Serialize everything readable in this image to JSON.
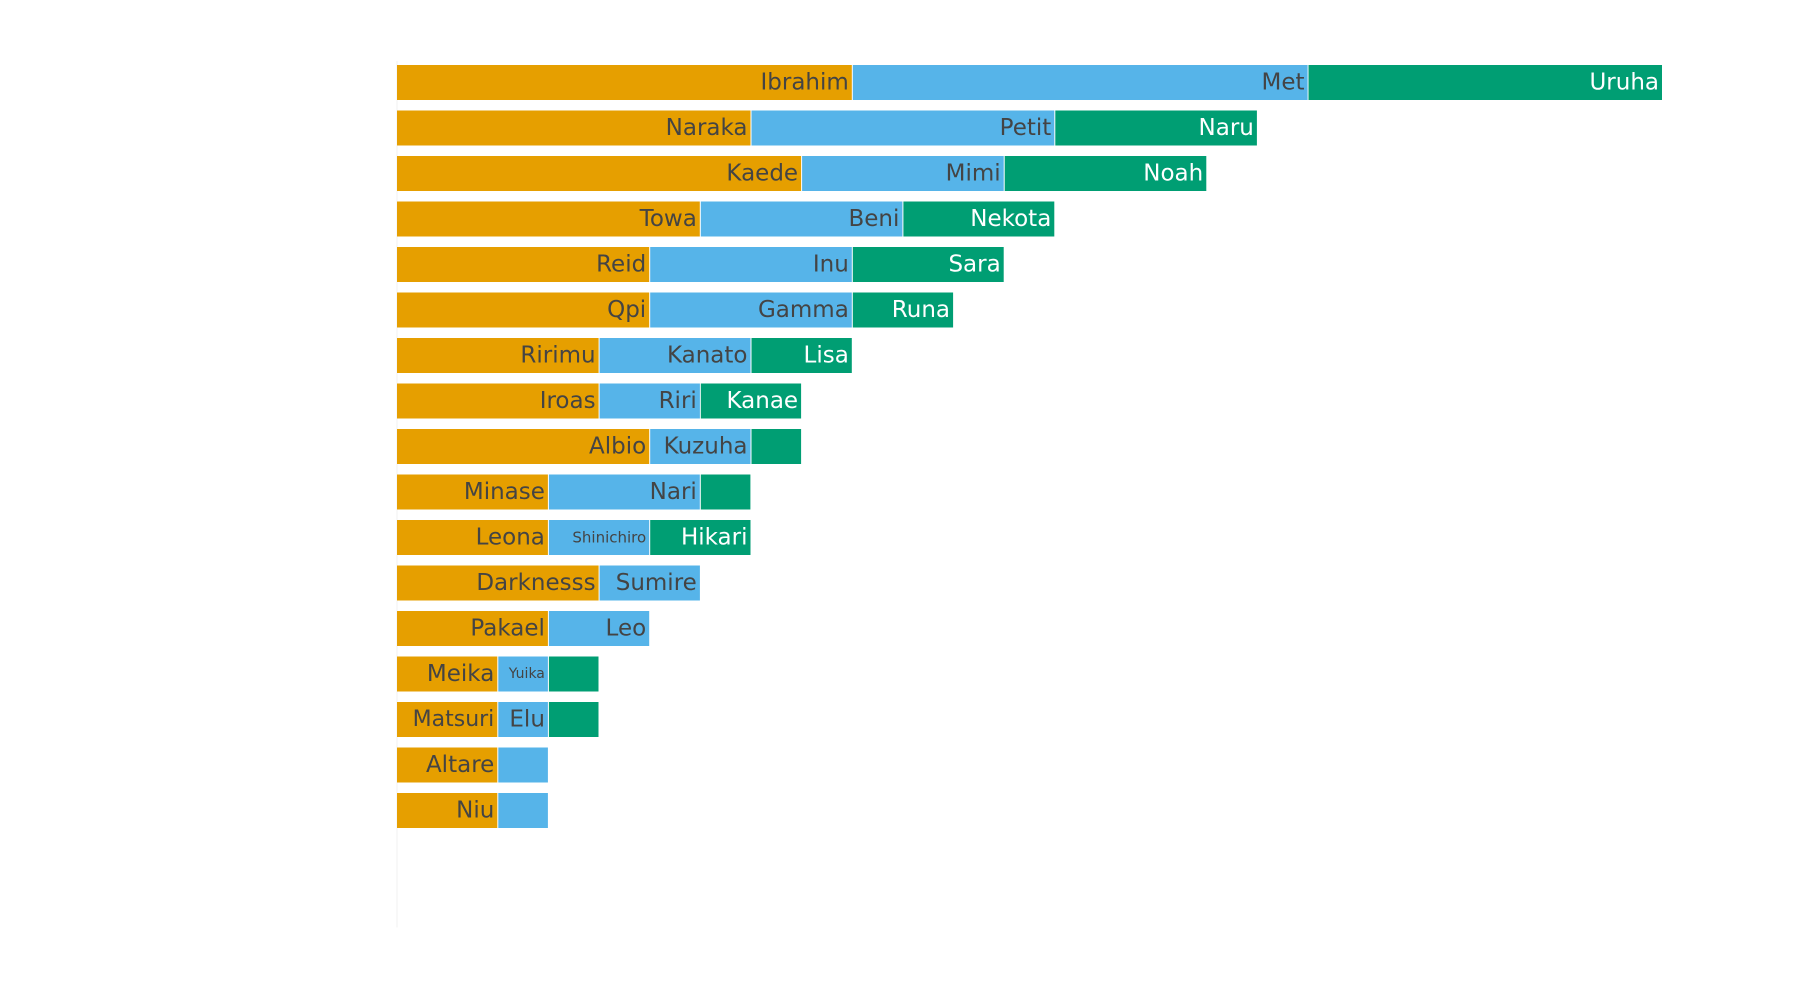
{
  "chart_data": {
    "type": "bar",
    "orientation": "horizontal",
    "stacked": true,
    "grid": false,
    "legend": "none",
    "colors": [
      "#E69F00",
      "#56B4E9",
      "#009E73"
    ],
    "label_colors": [
      "#444444",
      "#444444",
      "#ffffff"
    ],
    "xlim": [
      0,
      25
    ],
    "rows": [
      {
        "segments": [
          {
            "label": "Ibrahim",
            "value": 9
          },
          {
            "label": "Met",
            "value": 9
          },
          {
            "label": "Uruha",
            "value": 7
          }
        ]
      },
      {
        "segments": [
          {
            "label": "Naraka",
            "value": 7
          },
          {
            "label": "Petit",
            "value": 6
          },
          {
            "label": "Naru",
            "value": 4
          }
        ]
      },
      {
        "segments": [
          {
            "label": "Kaede",
            "value": 8
          },
          {
            "label": "Mimi",
            "value": 4
          },
          {
            "label": "Noah",
            "value": 4
          }
        ]
      },
      {
        "segments": [
          {
            "label": "Towa",
            "value": 6
          },
          {
            "label": "Beni",
            "value": 4
          },
          {
            "label": "Nekota",
            "value": 3
          }
        ]
      },
      {
        "segments": [
          {
            "label": "Reid",
            "value": 5
          },
          {
            "label": "Inu",
            "value": 4
          },
          {
            "label": "Sara",
            "value": 3
          }
        ]
      },
      {
        "segments": [
          {
            "label": "Qpi",
            "value": 5
          },
          {
            "label": "Gamma",
            "value": 4
          },
          {
            "label": "Runa",
            "value": 2
          }
        ]
      },
      {
        "segments": [
          {
            "label": "Ririmu",
            "value": 4
          },
          {
            "label": "Kanato",
            "value": 3
          },
          {
            "label": "Lisa",
            "value": 2
          }
        ]
      },
      {
        "segments": [
          {
            "label": "Iroas",
            "value": 4
          },
          {
            "label": "Riri",
            "value": 2
          },
          {
            "label": "Kanae",
            "value": 2
          }
        ]
      },
      {
        "segments": [
          {
            "label": "Albio",
            "value": 5
          },
          {
            "label": "Kuzuha",
            "value": 2
          },
          {
            "label": "",
            "value": 1
          }
        ]
      },
      {
        "segments": [
          {
            "label": "Minase",
            "value": 3
          },
          {
            "label": "Nari",
            "value": 3
          },
          {
            "label": "",
            "value": 1
          }
        ]
      },
      {
        "segments": [
          {
            "label": "Leona",
            "value": 3
          },
          {
            "label": "Shinichiro",
            "value": 2
          },
          {
            "label": "Hikari",
            "value": 2
          }
        ]
      },
      {
        "segments": [
          {
            "label": "Darknesss",
            "value": 4
          },
          {
            "label": "Sumire",
            "value": 2
          }
        ]
      },
      {
        "segments": [
          {
            "label": "Pakael",
            "value": 3
          },
          {
            "label": "Leo",
            "value": 2
          }
        ]
      },
      {
        "segments": [
          {
            "label": "Meika",
            "value": 2
          },
          {
            "label": "Yuika",
            "value": 1
          },
          {
            "label": "",
            "value": 1
          }
        ]
      },
      {
        "segments": [
          {
            "label": "Matsuri",
            "value": 2
          },
          {
            "label": "Elu",
            "value": 1
          },
          {
            "label": "",
            "value": 1
          }
        ]
      },
      {
        "segments": [
          {
            "label": "Altare",
            "value": 2
          },
          {
            "label": "",
            "value": 1
          }
        ]
      },
      {
        "segments": [
          {
            "label": "Niu",
            "value": 2
          },
          {
            "label": "",
            "value": 1
          }
        ]
      },
      {
        "segments": []
      },
      {
        "segments": []
      }
    ]
  }
}
